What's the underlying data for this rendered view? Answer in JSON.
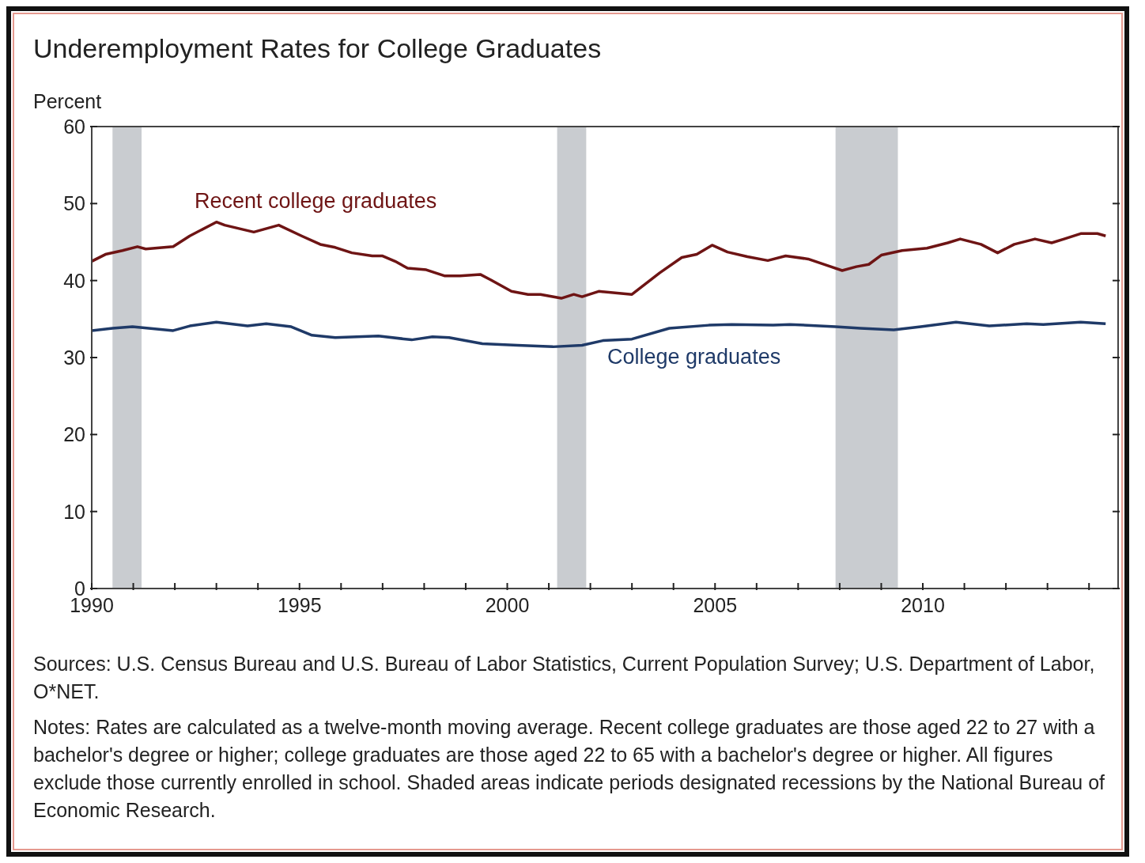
{
  "chart_data": {
    "type": "line",
    "title": "Underemployment Rates for College Graduates",
    "ylabel": "Percent",
    "xlim": [
      1990,
      2014.7
    ],
    "xticks": [
      1990,
      {
        "value": 1991,
        "label": null
      },
      {
        "value": 1992,
        "label": null
      },
      {
        "value": 1993,
        "label": null
      },
      {
        "value": 1994,
        "label": null
      },
      1995,
      {
        "value": 1996,
        "label": null
      },
      {
        "value": 1997,
        "label": null
      },
      {
        "value": 1998,
        "label": null
      },
      {
        "value": 1999,
        "label": null
      },
      2000,
      {
        "value": 2001,
        "label": null
      },
      {
        "value": 2002,
        "label": null
      },
      {
        "value": 2003,
        "label": null
      },
      {
        "value": 2004,
        "label": null
      },
      2005,
      {
        "value": 2006,
        "label": null
      },
      {
        "value": 2007,
        "label": null
      },
      {
        "value": 2008,
        "label": null
      },
      {
        "value": 2009,
        "label": null
      },
      2010,
      {
        "value": 2011,
        "label": null
      },
      {
        "value": 2012,
        "label": null
      },
      {
        "value": 2013,
        "label": null
      },
      {
        "value": 2014,
        "label": null
      }
    ],
    "ylim": [
      0,
      60
    ],
    "yticks": [
      0,
      10,
      20,
      30,
      40,
      50,
      60
    ],
    "grid": false,
    "legend": false,
    "marker": "none",
    "line_style": "solid",
    "bands": [
      {
        "axis": "x",
        "from": 1990.5,
        "to": 1991.2,
        "color": "#c9ccd0"
      },
      {
        "axis": "x",
        "from": 2001.2,
        "to": 2001.9,
        "color": "#c9ccd0"
      },
      {
        "axis": "x",
        "from": 2007.9,
        "to": 2009.4,
        "color": "#c9ccd0"
      }
    ],
    "series": [
      {
        "name": "Recent college graduates",
        "color": "#6e1414",
        "x": [
          1990.0,
          1990.33,
          1990.74,
          1991.1,
          1991.3,
          1991.96,
          1992.36,
          1993.0,
          1993.2,
          1993.9,
          1994.5,
          1995.05,
          1995.5,
          1995.86,
          1996.26,
          1996.75,
          1997.0,
          1997.3,
          1997.6,
          1998.05,
          1998.5,
          1998.86,
          1999.35,
          1999.6,
          2000.1,
          2000.5,
          2000.8,
          2001.3,
          2001.6,
          2001.8,
          2002.2,
          2003.0,
          2003.67,
          2004.2,
          2004.56,
          2004.93,
          2005.3,
          2005.78,
          2006.27,
          2006.7,
          2007.24,
          2007.73,
          2008.06,
          2008.4,
          2008.7,
          2009.0,
          2009.5,
          2010.1,
          2010.6,
          2010.9,
          2011.4,
          2011.8,
          2012.2,
          2012.7,
          2013.1,
          2013.4,
          2013.8,
          2014.2,
          2014.4
        ],
        "values": [
          42.5,
          43.4,
          43.9,
          44.4,
          44.1,
          44.4,
          45.8,
          47.6,
          47.2,
          46.3,
          47.2,
          45.8,
          44.7,
          44.3,
          43.6,
          43.2,
          43.2,
          42.5,
          41.6,
          41.4,
          40.6,
          40.6,
          40.8,
          40.1,
          38.6,
          38.2,
          38.2,
          37.7,
          38.2,
          37.9,
          38.6,
          38.2,
          41.0,
          43.0,
          43.4,
          44.6,
          43.7,
          43.1,
          42.6,
          43.2,
          42.8,
          41.9,
          41.3,
          41.8,
          42.1,
          43.3,
          43.9,
          44.2,
          44.9,
          45.4,
          44.7,
          43.6,
          44.7,
          45.4,
          44.9,
          45.4,
          46.1,
          46.1,
          45.8
        ]
      },
      {
        "name": "College graduates",
        "color": "#1f3a68",
        "x": [
          1990.0,
          1990.5,
          1990.98,
          1991.96,
          1992.36,
          1993.0,
          1993.75,
          1994.2,
          1994.8,
          1995.3,
          1995.86,
          1996.9,
          1997.7,
          1998.2,
          1998.6,
          1999.4,
          2000.25,
          2001.1,
          2001.8,
          2002.3,
          2003.0,
          2003.9,
          2004.85,
          2005.4,
          2006.4,
          2006.8,
          2007.9,
          2008.5,
          2009.3,
          2009.95,
          2010.8,
          2011.6,
          2012.5,
          2012.9,
          2013.8,
          2014.4
        ],
        "values": [
          33.5,
          33.8,
          34.0,
          33.5,
          34.1,
          34.6,
          34.1,
          34.4,
          34.0,
          32.9,
          32.6,
          32.8,
          32.3,
          32.7,
          32.6,
          31.8,
          31.6,
          31.4,
          31.6,
          32.2,
          32.4,
          33.8,
          34.2,
          34.3,
          34.2,
          34.3,
          34.0,
          33.8,
          33.6,
          34.0,
          34.6,
          34.1,
          34.4,
          34.3,
          34.6,
          34.4
        ]
      }
    ],
    "annotations": [
      "Sources: U.S. Census Bureau and U.S. Bureau of Labor Statistics, Current Population Survey; U.S. Department of Labor, O*NET.",
      "Notes: Rates are calculated as a twelve-month moving average. Recent college graduates are those aged 22 to 27 with a bachelor's degree or higher; college graduates are those aged 22 to 65 with a bachelor's degree or higher. All figures exclude those currently enrolled in school. Shaded areas indicate periods designated recessions by the National Bureau of Economic Research."
    ]
  }
}
